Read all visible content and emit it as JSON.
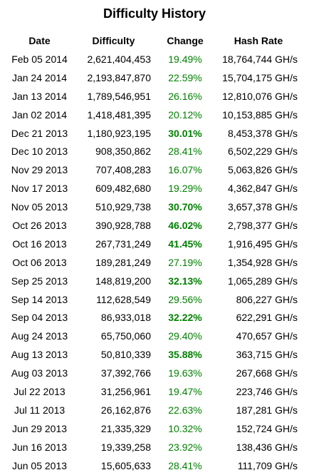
{
  "title": "Difficulty History",
  "columns": [
    "Date",
    "Difficulty",
    "Change",
    "Hash Rate"
  ],
  "colors": {
    "change": "#008000"
  },
  "rows": [
    {
      "date": "Feb 05 2014",
      "difficulty": "2,621,404,453",
      "change": "19.49%",
      "hash_rate": "18,764,744 GH/s",
      "highlight": false
    },
    {
      "date": "Jan 24 2014",
      "difficulty": "2,193,847,870",
      "change": "22.59%",
      "hash_rate": "15,704,175 GH/s",
      "highlight": false
    },
    {
      "date": "Jan 13 2014",
      "difficulty": "1,789,546,951",
      "change": "26.16%",
      "hash_rate": "12,810,076 GH/s",
      "highlight": false
    },
    {
      "date": "Jan 02 2014",
      "difficulty": "1,418,481,395",
      "change": "20.12%",
      "hash_rate": "10,153,885 GH/s",
      "highlight": false
    },
    {
      "date": "Dec 21 2013",
      "difficulty": "1,180,923,195",
      "change": "30.01%",
      "hash_rate": "8,453,378 GH/s",
      "highlight": true
    },
    {
      "date": "Dec 10 2013",
      "difficulty": "908,350,862",
      "change": "28.41%",
      "hash_rate": "6,502,229 GH/s",
      "highlight": false
    },
    {
      "date": "Nov 29 2013",
      "difficulty": "707,408,283",
      "change": "16.07%",
      "hash_rate": "5,063,826 GH/s",
      "highlight": false
    },
    {
      "date": "Nov 17 2013",
      "difficulty": "609,482,680",
      "change": "19.29%",
      "hash_rate": "4,362,847 GH/s",
      "highlight": false
    },
    {
      "date": "Nov 05 2013",
      "difficulty": "510,929,738",
      "change": "30.70%",
      "hash_rate": "3,657,378 GH/s",
      "highlight": true
    },
    {
      "date": "Oct 26 2013",
      "difficulty": "390,928,788",
      "change": "46.02%",
      "hash_rate": "2,798,377 GH/s",
      "highlight": true
    },
    {
      "date": "Oct 16 2013",
      "difficulty": "267,731,249",
      "change": "41.45%",
      "hash_rate": "1,916,495 GH/s",
      "highlight": true
    },
    {
      "date": "Oct 06 2013",
      "difficulty": "189,281,249",
      "change": "27.19%",
      "hash_rate": "1,354,928 GH/s",
      "highlight": false
    },
    {
      "date": "Sep 25 2013",
      "difficulty": "148,819,200",
      "change": "32.13%",
      "hash_rate": "1,065,289 GH/s",
      "highlight": true
    },
    {
      "date": "Sep 14 2013",
      "difficulty": "112,628,549",
      "change": "29.56%",
      "hash_rate": "806,227 GH/s",
      "highlight": false
    },
    {
      "date": "Sep 04 2013",
      "difficulty": "86,933,018",
      "change": "32.22%",
      "hash_rate": "622,291 GH/s",
      "highlight": true
    },
    {
      "date": "Aug 24 2013",
      "difficulty": "65,750,060",
      "change": "29.40%",
      "hash_rate": "470,657 GH/s",
      "highlight": false
    },
    {
      "date": "Aug 13 2013",
      "difficulty": "50,810,339",
      "change": "35.88%",
      "hash_rate": "363,715 GH/s",
      "highlight": true
    },
    {
      "date": "Aug 03 2013",
      "difficulty": "37,392,766",
      "change": "19.63%",
      "hash_rate": "267,668 GH/s",
      "highlight": false
    },
    {
      "date": "Jul 22 2013",
      "difficulty": "31,256,961",
      "change": "19.47%",
      "hash_rate": "223,746 GH/s",
      "highlight": false
    },
    {
      "date": "Jul 11 2013",
      "difficulty": "26,162,876",
      "change": "22.63%",
      "hash_rate": "187,281 GH/s",
      "highlight": false
    },
    {
      "date": "Jun 29 2013",
      "difficulty": "21,335,329",
      "change": "10.32%",
      "hash_rate": "152,724 GH/s",
      "highlight": false
    },
    {
      "date": "Jun 16 2013",
      "difficulty": "19,339,258",
      "change": "23.92%",
      "hash_rate": "138,436 GH/s",
      "highlight": false
    },
    {
      "date": "Jun 05 2013",
      "difficulty": "15,605,633",
      "change": "28.41%",
      "hash_rate": "111,709 GH/s",
      "highlight": false
    }
  ]
}
